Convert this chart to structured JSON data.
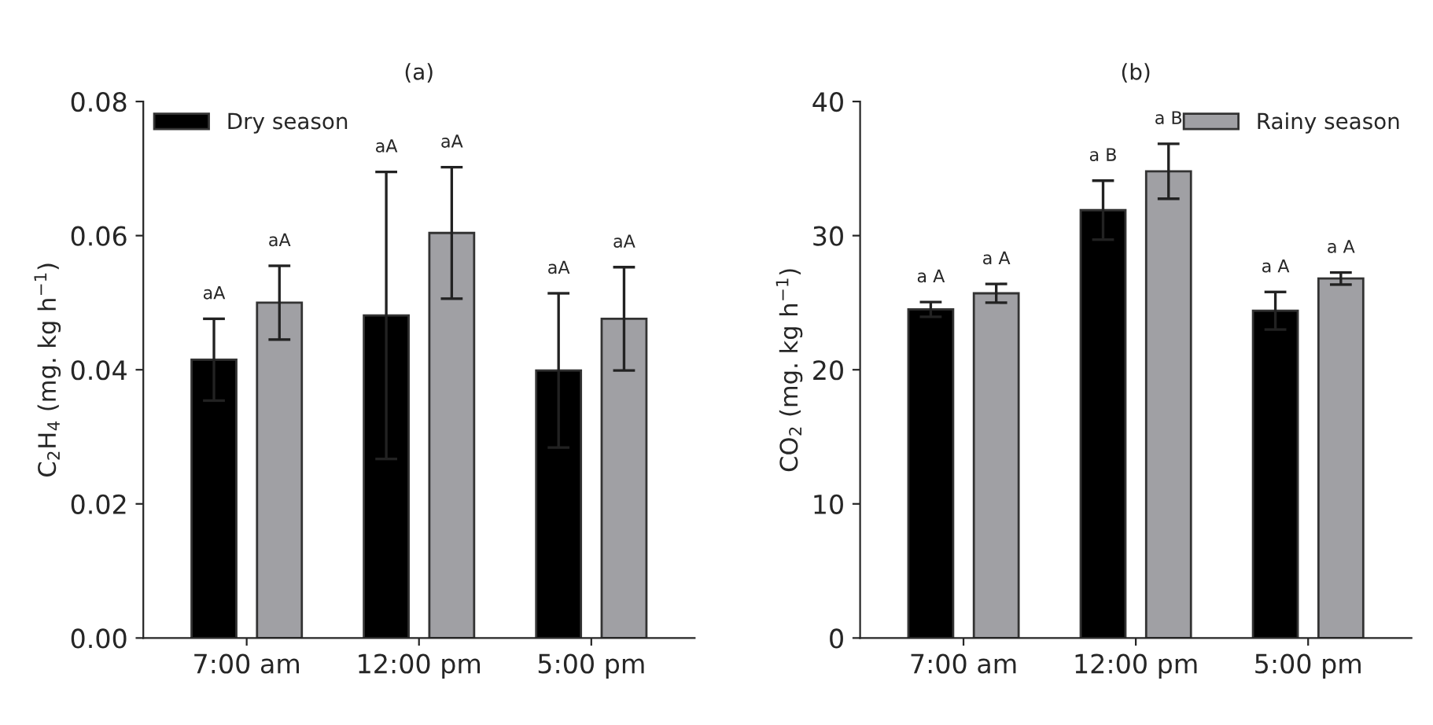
{
  "chart_data": [
    {
      "type": "bar",
      "title": "(a)",
      "ylabel": "C$_{2}$H$_{4}$ (mg. kg h$^{−1}$)",
      "categories": [
        "7:00 am",
        "12:00 pm",
        "5:00 pm"
      ],
      "series": [
        {
          "name": "Dry season",
          "color": "#000000",
          "values": [
            0.0415,
            0.0481,
            0.0399
          ],
          "errors": [
            0.0061,
            0.0214,
            0.0115
          ]
        },
        {
          "color": "#a0a0a4",
          "values": [
            0.05,
            0.0604,
            0.0476
          ],
          "errors": [
            0.0055,
            0.0098,
            0.0077
          ]
        }
      ],
      "annotations": [
        "aA",
        "aA",
        "aA",
        "aA",
        "aA",
        "aA"
      ],
      "ylim": [
        0,
        0.08
      ],
      "yticks": [
        {
          "value": 0,
          "label": "0.00"
        },
        {
          "value": 0.02,
          "label": "0.02"
        },
        {
          "value": 0.04,
          "label": "0.04"
        },
        {
          "value": 0.06,
          "label": "0.06"
        },
        {
          "value": 0.08,
          "label": "0.08"
        }
      ],
      "legend": "top left",
      "grid": false
    },
    {
      "type": "bar",
      "title": "(b)",
      "ylabel": "CO$_{2}$ (mg. kg h$^{−1}$)",
      "categories": [
        "7:00 am",
        "12:00 pm",
        "5:00 pm"
      ],
      "series": [
        {
          "color": "#000000",
          "values": [
            24.5,
            31.9,
            24.4
          ],
          "errors": [
            0.55,
            2.2,
            1.4
          ]
        },
        {
          "name": "Rainy season",
          "color": "#a0a0a4",
          "values": [
            25.7,
            34.8,
            26.8
          ],
          "errors": [
            0.7,
            2.05,
            0.45
          ]
        }
      ],
      "annotations": [
        "a A",
        "a B",
        "a A",
        "a A",
        "a B",
        "a A"
      ],
      "ylim": [
        0,
        40
      ],
      "yticks": [
        0,
        10,
        20,
        30,
        40
      ],
      "legend": "top right",
      "grid": false
    }
  ]
}
